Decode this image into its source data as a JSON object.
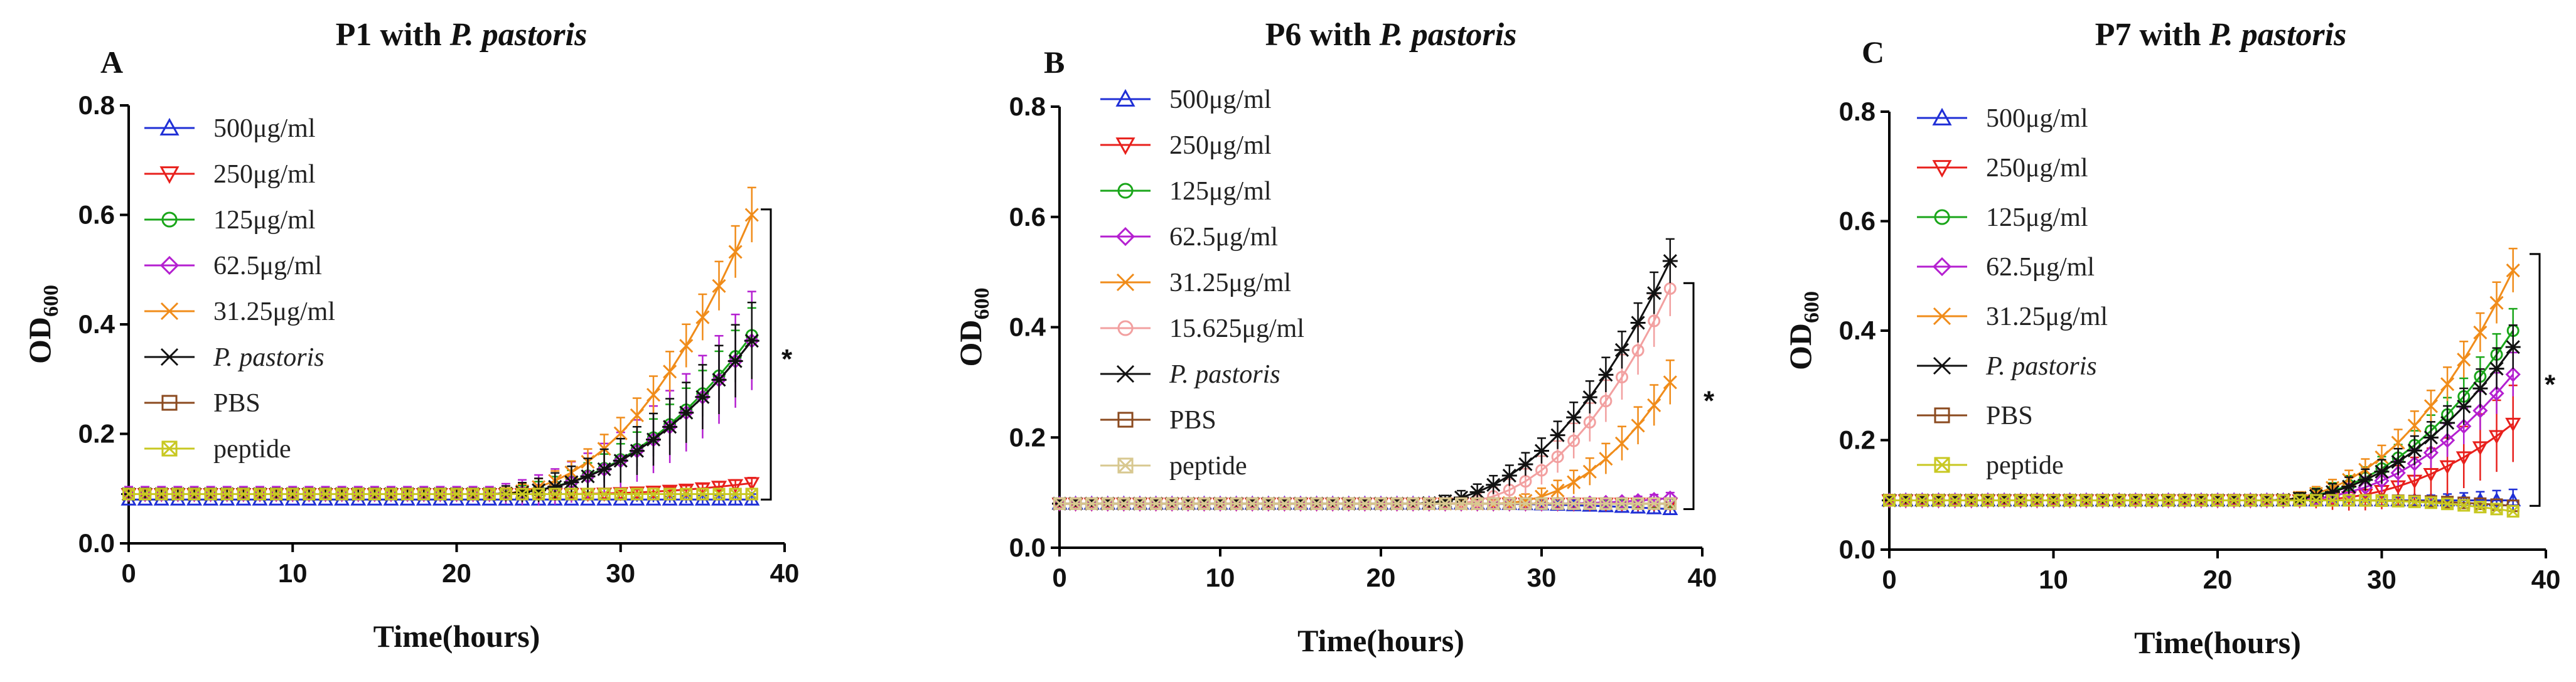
{
  "chart_data": [
    {
      "type": "line",
      "panel_letter": "A",
      "title": "P1 with",
      "title_italic": "P. pastoris",
      "xlabel": "Time(hours)",
      "ylabel_main": "OD",
      "ylabel_sub": "600",
      "xlim": [
        0,
        40
      ],
      "ylim": [
        0,
        0.8
      ],
      "xticks": [
        0,
        10,
        20,
        30,
        40
      ],
      "yticks": [
        0.0,
        0.2,
        0.4,
        0.6,
        0.8
      ],
      "xtick_labels": [
        "0",
        "10",
        "20",
        "30",
        "40"
      ],
      "ytick_labels": [
        "0.0",
        "0.2",
        "0.4",
        "0.6",
        "0.8"
      ],
      "significance": "*",
      "bracket": [
        0.08,
        0.61
      ],
      "series": [
        {
          "name": "500μg/ml",
          "color": "#1f2fd6",
          "marker": "triangle-up",
          "start": 0.08,
          "end": 0.08,
          "onset": 28,
          "err": 0.01
        },
        {
          "name": "250μg/ml",
          "color": "#e8201c",
          "marker": "triangle-down",
          "start": 0.09,
          "end": 0.11,
          "onset": 26,
          "err": 0.01
        },
        {
          "name": "125μg/ml",
          "color": "#1aa61a",
          "marker": "circle",
          "start": 0.09,
          "end": 0.38,
          "onset": 22,
          "err": 0.05
        },
        {
          "name": "62.5μg/ml",
          "color": "#b41fd0",
          "marker": "diamond",
          "start": 0.09,
          "end": 0.37,
          "onset": 22,
          "err": 0.09
        },
        {
          "name": "31.25μg/ml",
          "color": "#f08c1a",
          "marker": "x",
          "start": 0.09,
          "end": 0.6,
          "onset": 22,
          "err": 0.05
        },
        {
          "name": "P. pastoris",
          "italic": true,
          "color": "#111111",
          "marker": "star",
          "start": 0.09,
          "end": 0.37,
          "onset": 22,
          "err": 0.07
        },
        {
          "name": "PBS",
          "color": "#8b4a1f",
          "marker": "square",
          "start": 0.09,
          "end": 0.09,
          "onset": 40,
          "err": 0.0
        },
        {
          "name": "peptide",
          "color": "#c8c822",
          "marker": "square-x",
          "start": 0.09,
          "end": 0.09,
          "onset": 40,
          "err": 0.0
        }
      ]
    },
    {
      "type": "line",
      "panel_letter": "B",
      "title": "P6 with",
      "title_italic": "P. pastoris",
      "xlabel": "Time(hours)",
      "ylabel_main": "OD",
      "ylabel_sub": "600",
      "xlim": [
        0,
        40
      ],
      "ylim": [
        0,
        0.8
      ],
      "xticks": [
        0,
        10,
        20,
        30,
        40
      ],
      "yticks": [
        0.0,
        0.2,
        0.4,
        0.6,
        0.8
      ],
      "xtick_labels": [
        "0",
        "10",
        "20",
        "30",
        "40"
      ],
      "ytick_labels": [
        "0.0",
        "0.2",
        "0.4",
        "0.6",
        "0.8"
      ],
      "significance": "*",
      "bracket": [
        0.07,
        0.48
      ],
      "series": [
        {
          "name": "500μg/ml",
          "color": "#1f2fd6",
          "marker": "triangle-up",
          "start": 0.08,
          "end": 0.07,
          "onset": 24,
          "err": 0.01
        },
        {
          "name": "250μg/ml",
          "color": "#e8201c",
          "marker": "triangle-down",
          "start": 0.08,
          "end": 0.08,
          "onset": 30,
          "err": 0.01
        },
        {
          "name": "125μg/ml",
          "color": "#1aa61a",
          "marker": "circle",
          "start": 0.08,
          "end": 0.08,
          "onset": 30,
          "err": 0.01
        },
        {
          "name": "62.5μg/ml",
          "color": "#b41fd0",
          "marker": "diamond",
          "start": 0.08,
          "end": 0.09,
          "onset": 30,
          "err": 0.01
        },
        {
          "name": "31.25μg/ml",
          "color": "#f08c1a",
          "marker": "x",
          "start": 0.08,
          "end": 0.3,
          "onset": 27,
          "err": 0.04
        },
        {
          "name": "15.625μg/ml",
          "color": "#f2a0a0",
          "marker": "circle",
          "start": 0.08,
          "end": 0.47,
          "onset": 24,
          "err": 0.05
        },
        {
          "name": "P. pastoris",
          "italic": true,
          "color": "#111111",
          "marker": "star",
          "start": 0.08,
          "end": 0.52,
          "onset": 22,
          "err": 0.04
        },
        {
          "name": "PBS",
          "color": "#8b4a1f",
          "marker": "square",
          "start": 0.08,
          "end": 0.08,
          "onset": 40,
          "err": 0.0
        },
        {
          "name": "peptide",
          "color": "#d8c890",
          "marker": "square-x",
          "start": 0.08,
          "end": 0.08,
          "onset": 40,
          "err": 0.0
        }
      ]
    },
    {
      "type": "line",
      "panel_letter": "C",
      "title": "P7 with",
      "title_italic": "P. pastoris",
      "xlabel": "Time(hours)",
      "ylabel_main": "OD",
      "ylabel_sub": "600",
      "xlim": [
        0,
        40
      ],
      "ylim": [
        0,
        0.8
      ],
      "xticks": [
        0,
        10,
        20,
        30,
        40
      ],
      "yticks": [
        0.0,
        0.2,
        0.4,
        0.6,
        0.8
      ],
      "xtick_labels": [
        "0",
        "10",
        "20",
        "30",
        "40"
      ],
      "ytick_labels": [
        "0.0",
        "0.2",
        "0.4",
        "0.6",
        "0.8"
      ],
      "significance": "*",
      "bracket": [
        0.08,
        0.54
      ],
      "series": [
        {
          "name": "500μg/ml",
          "color": "#1f2fd6",
          "marker": "triangle-up",
          "start": 0.09,
          "end": 0.09,
          "onset": 30,
          "err": 0.02
        },
        {
          "name": "250μg/ml",
          "color": "#e8201c",
          "marker": "triangle-down",
          "start": 0.09,
          "end": 0.23,
          "onset": 25,
          "err": 0.07
        },
        {
          "name": "125μg/ml",
          "color": "#1aa61a",
          "marker": "circle",
          "start": 0.09,
          "end": 0.4,
          "onset": 23,
          "err": 0.04
        },
        {
          "name": "62.5μg/ml",
          "color": "#b41fd0",
          "marker": "diamond",
          "start": 0.09,
          "end": 0.32,
          "onset": 24,
          "err": 0.04
        },
        {
          "name": "31.25μg/ml",
          "color": "#f08c1a",
          "marker": "x",
          "start": 0.09,
          "end": 0.51,
          "onset": 23,
          "err": 0.04
        },
        {
          "name": "P. pastoris",
          "italic": true,
          "color": "#111111",
          "marker": "star",
          "start": 0.09,
          "end": 0.37,
          "onset": 23,
          "err": 0.04
        },
        {
          "name": "PBS",
          "color": "#8b4a1f",
          "marker": "square",
          "start": 0.09,
          "end": 0.08,
          "onset": 28,
          "err": 0.0
        },
        {
          "name": "peptide",
          "color": "#c8c822",
          "marker": "square-x",
          "start": 0.09,
          "end": 0.07,
          "onset": 28,
          "err": 0.0
        }
      ]
    }
  ]
}
